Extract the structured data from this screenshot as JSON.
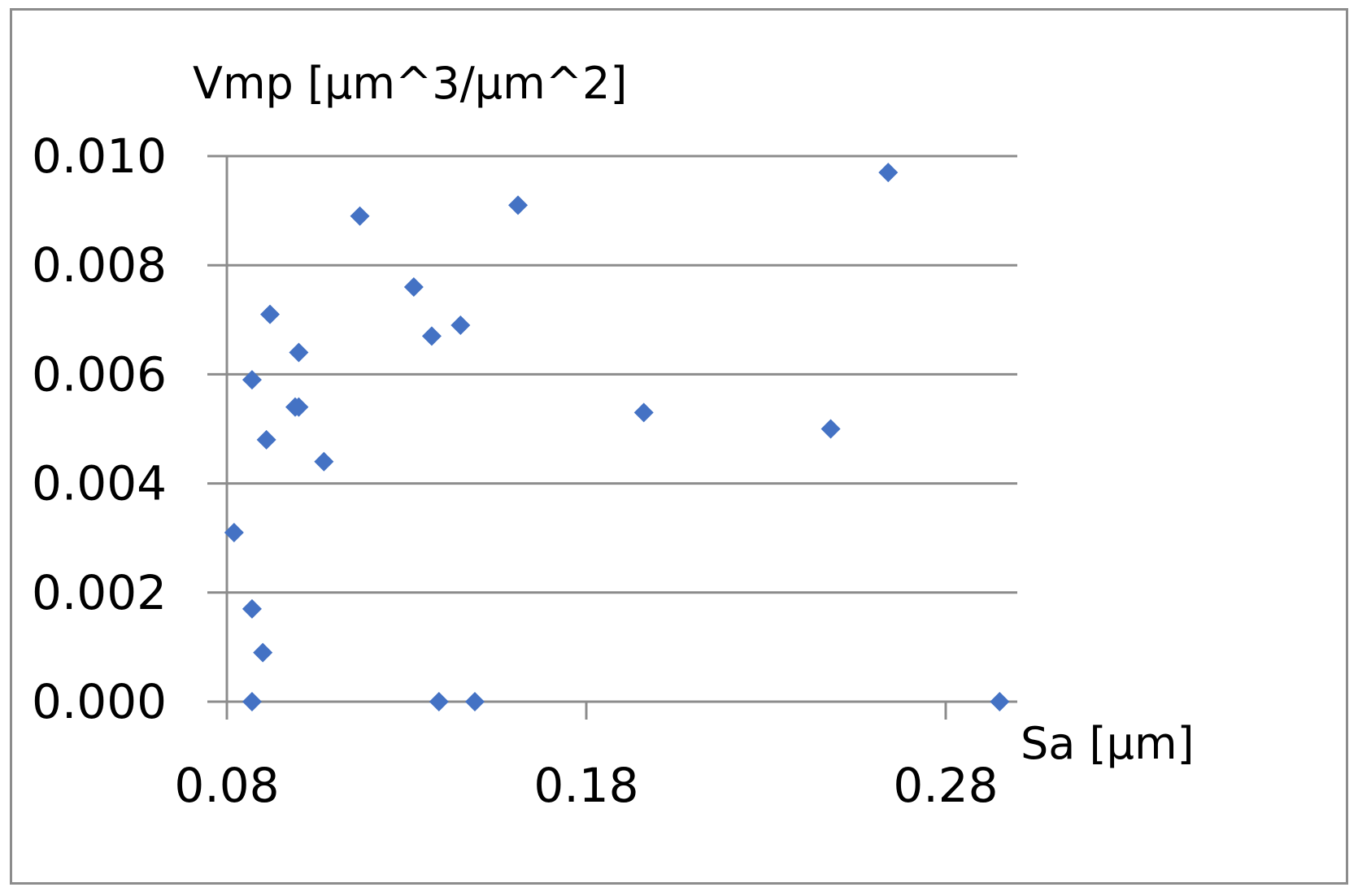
{
  "chart_data": {
    "type": "scatter",
    "title": "",
    "xlabel": "Sa [µm]",
    "ylabel": "Vmp [µm^3/µm^2]",
    "xlim": [
      0.08,
      0.3
    ],
    "ylim": [
      0.0,
      0.01
    ],
    "x_ticks": [
      "0.08",
      "0.18",
      "0.28"
    ],
    "y_ticks": [
      "0.000",
      "0.002",
      "0.004",
      "0.006",
      "0.008",
      "0.010"
    ],
    "grid": "horizontal",
    "marker": "diamond",
    "colors": {
      "marker": "#4472C4",
      "grid": "#8c8c8c",
      "border": "#8c8c8c"
    },
    "series": [
      {
        "points": [
          {
            "x": 0.082,
            "y": 0.0031
          },
          {
            "x": 0.087,
            "y": 0.0
          },
          {
            "x": 0.087,
            "y": 0.0059
          },
          {
            "x": 0.087,
            "y": 0.0017
          },
          {
            "x": 0.09,
            "y": 0.0009
          },
          {
            "x": 0.091,
            "y": 0.0048
          },
          {
            "x": 0.092,
            "y": 0.0071
          },
          {
            "x": 0.099,
            "y": 0.0054
          },
          {
            "x": 0.1,
            "y": 0.0054
          },
          {
            "x": 0.1,
            "y": 0.0064
          },
          {
            "x": 0.107,
            "y": 0.0044
          },
          {
            "x": 0.117,
            "y": 0.0089
          },
          {
            "x": 0.132,
            "y": 0.0076
          },
          {
            "x": 0.137,
            "y": 0.0067
          },
          {
            "x": 0.139,
            "y": 0.0
          },
          {
            "x": 0.145,
            "y": 0.0069
          },
          {
            "x": 0.149,
            "y": 0.0
          },
          {
            "x": 0.161,
            "y": 0.0091
          },
          {
            "x": 0.196,
            "y": 0.0053
          },
          {
            "x": 0.248,
            "y": 0.005
          },
          {
            "x": 0.264,
            "y": 0.0097
          },
          {
            "x": 0.295,
            "y": 0.0
          }
        ]
      }
    ]
  }
}
